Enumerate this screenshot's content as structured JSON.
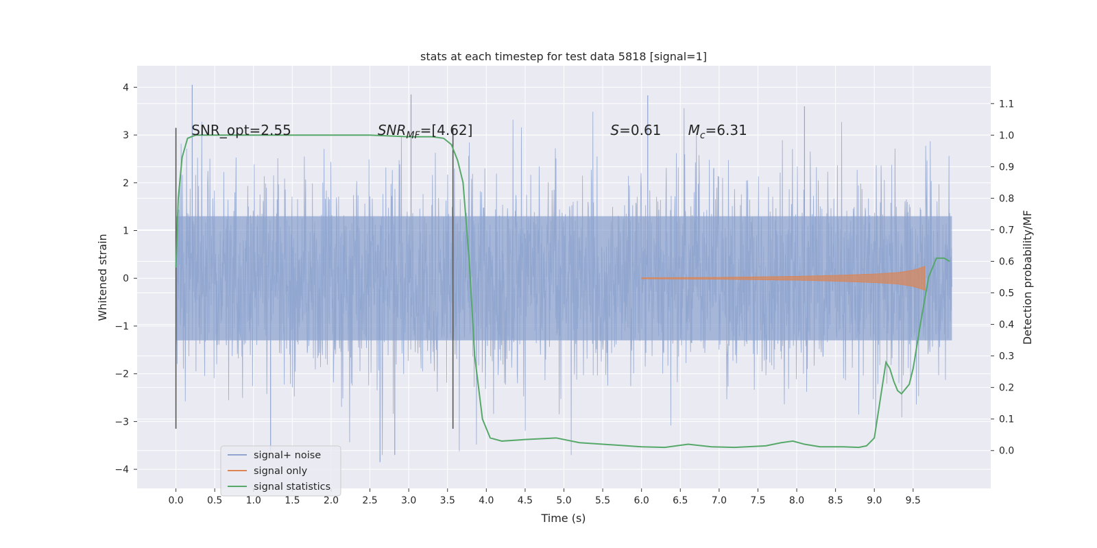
{
  "chart_data": {
    "type": "line",
    "title": "stats at each timestep for test data 5818 [signal=1]",
    "xlabel": "Time (s)",
    "ylabel": "Whitened strain",
    "y2label": "Detection probability/MF",
    "xlim": [
      -0.5,
      10.5
    ],
    "ylim": [
      -4.4,
      4.45
    ],
    "y2lim": [
      -0.12,
      1.22
    ],
    "x_ticks": [
      0.0,
      0.5,
      1.0,
      1.5,
      2.0,
      2.5,
      3.0,
      3.5,
      4.0,
      4.5,
      5.0,
      5.5,
      6.0,
      6.5,
      7.0,
      7.5,
      8.0,
      8.5,
      9.0,
      9.5
    ],
    "x_tick_labels": [
      "0.0",
      "0.5",
      "1.0",
      "1.5",
      "2.0",
      "2.5",
      "3.0",
      "3.5",
      "4.0",
      "4.5",
      "5.0",
      "5.5",
      "6.0",
      "6.5",
      "7.0",
      "7.5",
      "8.0",
      "8.5",
      "9.0",
      "9.5"
    ],
    "y_ticks": [
      -4,
      -3,
      -2,
      -1,
      0,
      1,
      2,
      3,
      4
    ],
    "y_tick_labels": [
      "−4",
      "−3",
      "−2",
      "−1",
      "0",
      "1",
      "2",
      "3",
      "4"
    ],
    "y2_ticks": [
      0.0,
      0.1,
      0.2,
      0.3,
      0.4,
      0.5,
      0.6,
      0.7,
      0.8,
      0.9,
      1.0,
      1.1
    ],
    "y2_tick_labels": [
      "0.0",
      "0.1",
      "0.2",
      "0.3",
      "0.4",
      "0.5",
      "0.6",
      "0.7",
      "0.8",
      "0.9",
      "1.0",
      "1.1"
    ],
    "grid": true,
    "legend_position": "lower-left",
    "colors": {
      "background": "#eaeaf2",
      "grid": "#ffffff",
      "noise": "#8fa4cf",
      "signal": "#dd8452",
      "statistics": "#55a868",
      "marker": "#555555"
    },
    "annotations": [
      {
        "label": "SNR_opt=2.55",
        "x": 0.2,
        "y": 3.1
      },
      {
        "label": "SNR",
        "sub": "MF",
        "suffix": "=[4.62]",
        "x": 2.6,
        "y": 3.1
      },
      {
        "label": "S",
        "suffix": "=0.61",
        "x": 5.6,
        "y": 3.1
      },
      {
        "label": "M",
        "sub": "c",
        "suffix": "=6.31",
        "x": 6.6,
        "y": 3.1
      }
    ],
    "markers": [
      {
        "x": 0.0,
        "y_range": [
          -3.15,
          3.15
        ]
      },
      {
        "x": 3.57,
        "y_range": [
          -3.15,
          3.15
        ]
      }
    ],
    "series": [
      {
        "name": "signal+ noise",
        "kind": "noise-envelope",
        "x_range": [
          0.0,
          10.0
        ],
        "core_band": [
          -1.3,
          1.3
        ],
        "spike_max": 3.6,
        "spike_min": -3.7,
        "outliers": [
          {
            "x": 0.21,
            "y": 4.05
          },
          {
            "x": 3.03,
            "y": 3.85
          },
          {
            "x": 6.08,
            "y": 3.83
          },
          {
            "x": 8.1,
            "y": 3.6
          },
          {
            "x": 1.22,
            "y": -3.65
          },
          {
            "x": 2.63,
            "y": -3.85
          },
          {
            "x": 2.82,
            "y": -3.7
          }
        ]
      },
      {
        "name": "signal only",
        "kind": "envelope",
        "x": [
          6.0,
          7.0,
          8.0,
          8.5,
          9.0,
          9.3,
          9.5,
          9.6,
          9.65
        ],
        "amplitude": [
          0.01,
          0.02,
          0.04,
          0.06,
          0.09,
          0.12,
          0.17,
          0.22,
          0.25
        ]
      },
      {
        "name": "signal statistics",
        "kind": "line",
        "axis": "right",
        "x": [
          0.0,
          0.03,
          0.08,
          0.15,
          0.25,
          0.4,
          1.0,
          2.0,
          2.5,
          3.0,
          3.3,
          3.45,
          3.55,
          3.63,
          3.7,
          3.78,
          3.85,
          3.95,
          4.05,
          4.2,
          4.5,
          4.9,
          5.2,
          5.5,
          6.0,
          6.3,
          6.6,
          6.9,
          7.2,
          7.6,
          7.8,
          7.95,
          8.1,
          8.3,
          8.6,
          8.8,
          8.9,
          9.0,
          9.1,
          9.15,
          9.2,
          9.25,
          9.3,
          9.35,
          9.45,
          9.5,
          9.6,
          9.7,
          9.8,
          9.9,
          9.97
        ],
        "y": [
          0.58,
          0.8,
          0.93,
          0.99,
          1.0,
          1.0,
          1.0,
          1.0,
          1.0,
          0.995,
          0.995,
          0.99,
          0.97,
          0.92,
          0.85,
          0.6,
          0.3,
          0.1,
          0.04,
          0.03,
          0.035,
          0.04,
          0.025,
          0.02,
          0.012,
          0.01,
          0.02,
          0.012,
          0.01,
          0.015,
          0.025,
          0.03,
          0.02,
          0.012,
          0.012,
          0.01,
          0.015,
          0.04,
          0.2,
          0.28,
          0.26,
          0.22,
          0.19,
          0.18,
          0.21,
          0.26,
          0.41,
          0.55,
          0.61,
          0.61,
          0.6
        ]
      }
    ]
  }
}
